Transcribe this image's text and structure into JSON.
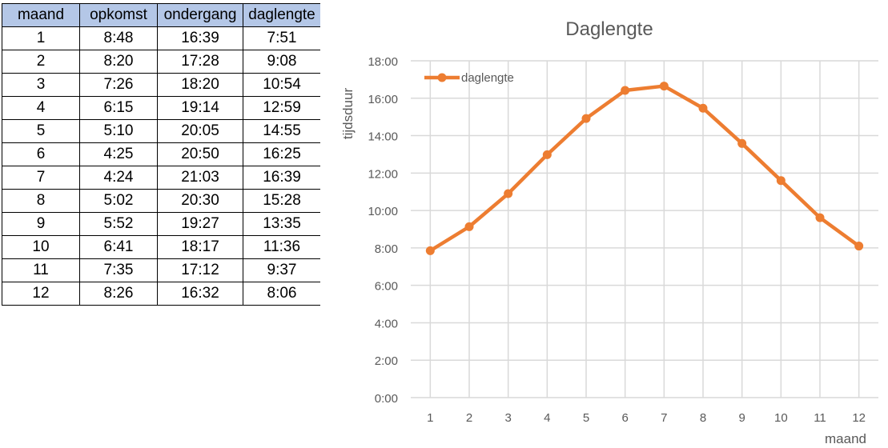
{
  "table": {
    "headers": [
      "maand",
      "opkomst",
      "ondergang",
      "daglengte"
    ],
    "rows": [
      [
        "1",
        "8:48",
        "16:39",
        "7:51"
      ],
      [
        "2",
        "8:20",
        "17:28",
        "9:08"
      ],
      [
        "3",
        "7:26",
        "18:20",
        "10:54"
      ],
      [
        "4",
        "6:15",
        "19:14",
        "12:59"
      ],
      [
        "5",
        "5:10",
        "20:05",
        "14:55"
      ],
      [
        "6",
        "4:25",
        "20:50",
        "16:25"
      ],
      [
        "7",
        "4:24",
        "21:03",
        "16:39"
      ],
      [
        "8",
        "5:02",
        "20:30",
        "15:28"
      ],
      [
        "9",
        "5:52",
        "19:27",
        "13:35"
      ],
      [
        "10",
        "6:41",
        "18:17",
        "11:36"
      ],
      [
        "11",
        "7:35",
        "17:12",
        "9:37"
      ],
      [
        "12",
        "8:26",
        "16:32",
        "8:06"
      ]
    ]
  },
  "chart_data": {
    "type": "line",
    "title": "Daglengte",
    "xlabel": "maand",
    "ylabel": "tijdsduur",
    "categories": [
      "1",
      "2",
      "3",
      "4",
      "5",
      "6",
      "7",
      "8",
      "9",
      "10",
      "11",
      "12"
    ],
    "y_tick_labels": [
      "0:00",
      "2:00",
      "4:00",
      "6:00",
      "8:00",
      "10:00",
      "12:00",
      "14:00",
      "16:00",
      "18:00"
    ],
    "ylim": [
      0,
      18
    ],
    "grid": true,
    "legend_position": "top-left",
    "series": [
      {
        "name": "daglengte",
        "values": [
          7.85,
          9.133,
          10.9,
          12.983,
          14.917,
          16.417,
          16.65,
          15.467,
          13.583,
          11.6,
          9.617,
          8.1
        ],
        "color": "#ed7d31"
      }
    ]
  },
  "colors": {
    "line": "#ed7d31",
    "header_fill": "#b4c7e7",
    "gridline": "#d9d9d9",
    "axis_text": "#595959"
  }
}
